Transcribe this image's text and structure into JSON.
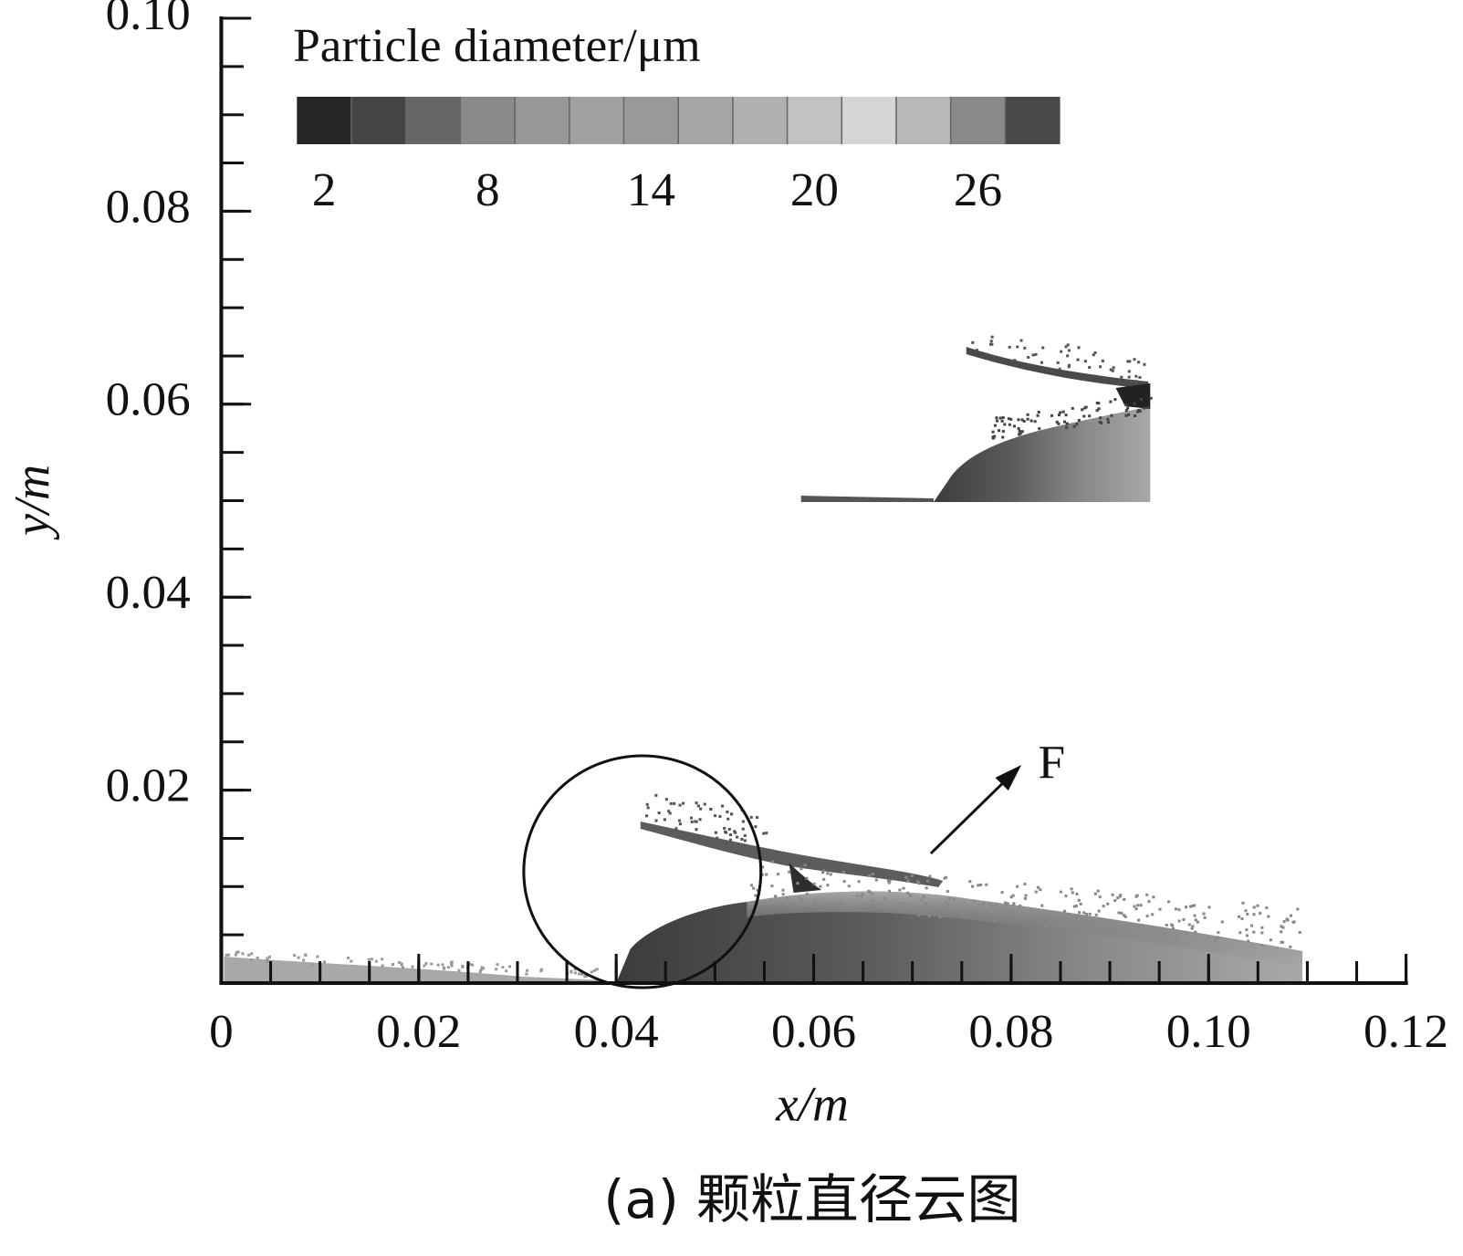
{
  "chart_data": {
    "type": "contour",
    "xlabel": "x/m",
    "ylabel": "y/m",
    "caption": "(a) 颗粒直径云图",
    "xlim": [
      0,
      0.12
    ],
    "ylim": [
      0,
      0.1
    ],
    "xticks": [
      0,
      0.02,
      0.04,
      0.06,
      0.08,
      {
        "value": 0.1,
        "label": "0.10"
      },
      0.12
    ],
    "yticks": [
      0.02,
      0.04,
      0.06,
      0.08,
      {
        "value": 0.1,
        "label": "0.10"
      }
    ],
    "minor_tick_step": 0.005,
    "colorbar": {
      "title": "Particle diameter/μm",
      "lim": [
        1,
        29
      ],
      "ticks": [
        2,
        8,
        14,
        20,
        26
      ],
      "colors": [
        "#262626",
        "#444444",
        "#666666",
        "#8a8a8a",
        "#979797",
        "#a0a0a0",
        "#999999",
        "#a6a6a6",
        "#b0b0b0",
        "#c2c2c2",
        "#d6d6d6",
        "#b8b8b8",
        "#8a8a8a",
        "#4a4a4a"
      ]
    },
    "annotations": [
      {
        "text": "F"
      }
    ]
  }
}
